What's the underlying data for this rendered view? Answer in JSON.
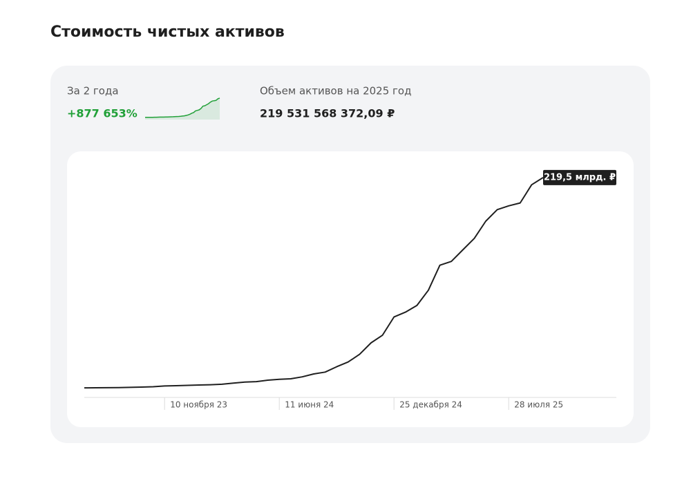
{
  "header": {
    "title": "Стоимость чистых активов"
  },
  "summary": {
    "period_label": "За 2 года",
    "growth": "+877 653%",
    "assets_label": "Объем активов на 2025 год",
    "assets_value": "219 531 568 372,09 ₽"
  },
  "chart_data": {
    "type": "line",
    "color": "#1f1f1f",
    "spark_color": "#21a038",
    "categories": [
      null,
      null,
      null,
      null,
      null,
      null,
      null,
      "10 ноября 23",
      null,
      null,
      null,
      null,
      null,
      null,
      null,
      null,
      null,
      "11 июня 24",
      null,
      null,
      null,
      null,
      null,
      null,
      null,
      null,
      null,
      "25 декабря 24",
      null,
      null,
      null,
      null,
      null,
      null,
      null,
      null,
      null,
      "28 июля 25",
      null,
      null,
      null
    ],
    "values": [
      0.02,
      0.1,
      0.2,
      0.3,
      0.5,
      0.8,
      1.2,
      2,
      2.3,
      2.6,
      3,
      3.3,
      3.8,
      5,
      6,
      6.5,
      8,
      9,
      9.5,
      11.5,
      14.5,
      16.5,
      22,
      27,
      35,
      47,
      55,
      74,
      79,
      86,
      102,
      128,
      132,
      144,
      156,
      174,
      186,
      190,
      193,
      212,
      219.5
    ],
    "end_label": "219,5 млрд. ₽",
    "ylim": [
      -10,
      235
    ]
  }
}
